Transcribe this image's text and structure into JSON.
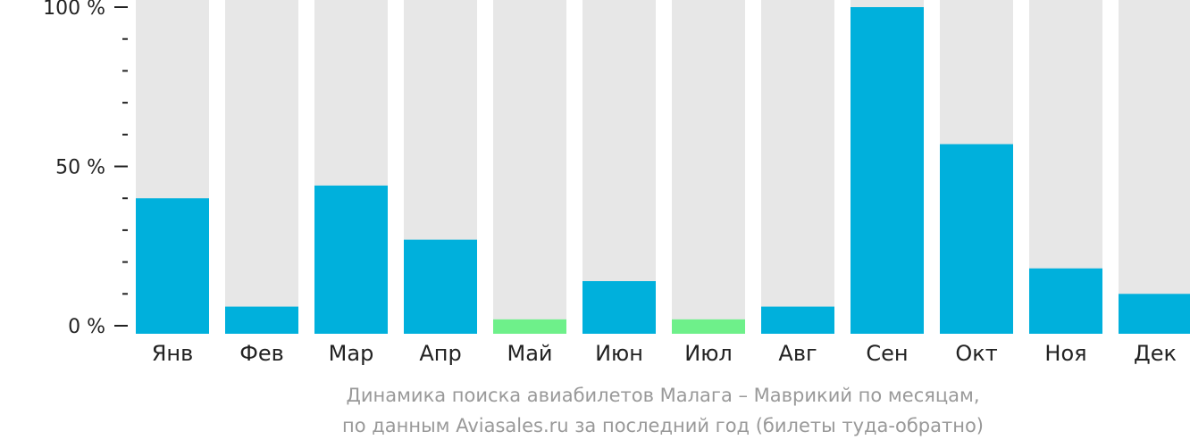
{
  "chart_data": {
    "type": "bar",
    "categories": [
      "Янв",
      "Фев",
      "Мар",
      "Апр",
      "Май",
      "Июн",
      "Июл",
      "Авг",
      "Сен",
      "Окт",
      "Ноя",
      "Дек"
    ],
    "values": [
      40,
      6,
      44,
      27,
      2,
      14,
      2,
      6,
      100,
      57,
      18,
      10
    ],
    "highlight": [
      false,
      false,
      false,
      false,
      true,
      false,
      true,
      false,
      false,
      false,
      false,
      false
    ],
    "ylim": [
      0,
      100
    ],
    "y_ticks": [
      {
        "value": 100,
        "label": "100 %"
      },
      {
        "value": 50,
        "label": "50 %"
      },
      {
        "value": 0,
        "label": "0 %"
      }
    ],
    "minor_tick_step": 10,
    "grid": false,
    "colors": {
      "bar": "#00b0dc",
      "highlight": "#6ef08a",
      "track": "#e7e7e7",
      "axis": "#222222"
    }
  },
  "caption": {
    "line1": "Динамика поиска авиабилетов Малага – Маврикий по месяцам,",
    "line2": "по данным Aviasales.ru за последний год (билеты туда-обратно)"
  }
}
